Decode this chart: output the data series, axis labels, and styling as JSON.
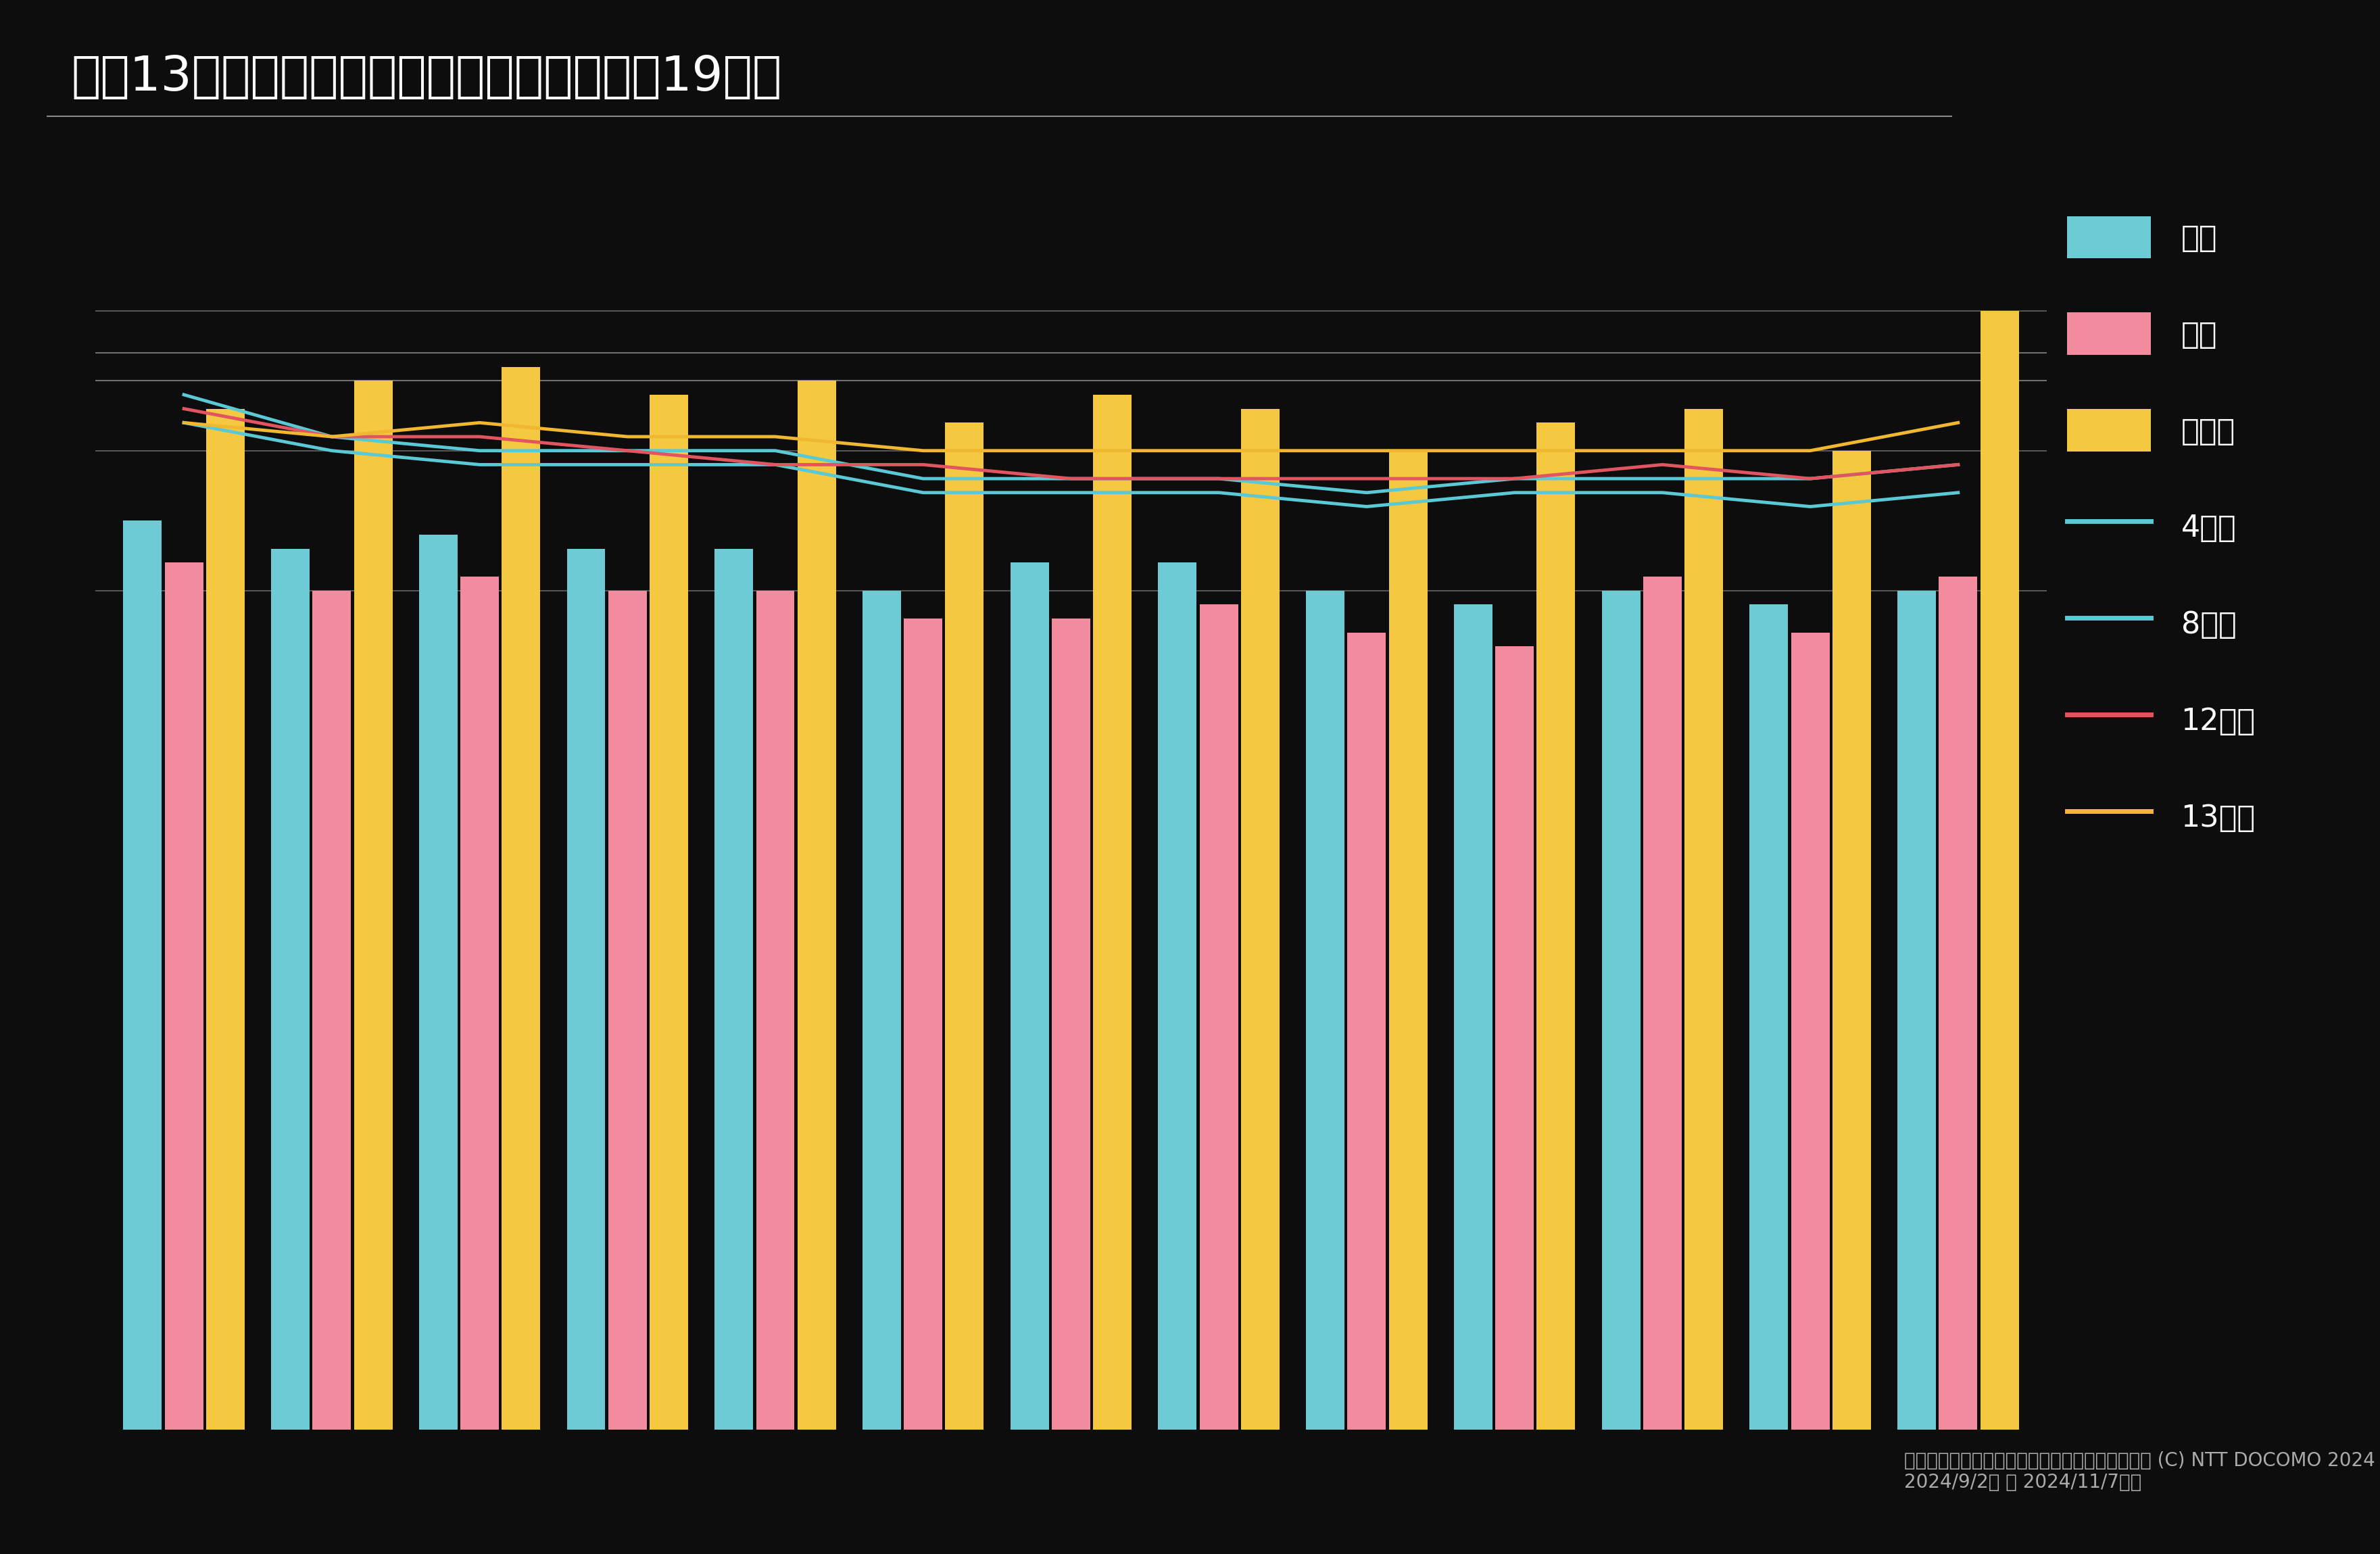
{
  "title": "直近13週の人口推移　ビジネス街　平日－19時台",
  "background_color": "#0d0d0d",
  "text_color": "#ffffff",
  "n_weeks": 13,
  "bar_colors": [
    "#6dcbd6",
    "#f28b9e",
    "#f5c842"
  ],
  "line_colors": [
    "#5bc8d5",
    "#e05560",
    "#f0b830"
  ],
  "bar_width": 0.28,
  "bar_series": [
    [
      65,
      63,
      64,
      63,
      63,
      60,
      62,
      62,
      60,
      59,
      60,
      59,
      60
    ],
    [
      62,
      60,
      61,
      60,
      60,
      58,
      58,
      59,
      57,
      56,
      61,
      57,
      61
    ],
    [
      73,
      75,
      76,
      74,
      75,
      72,
      74,
      73,
      70,
      72,
      73,
      70,
      80
    ]
  ],
  "line_series": [
    [
      74,
      71,
      70,
      70,
      70,
      68,
      68,
      68,
      67,
      68,
      68,
      68,
      69
    ],
    [
      73,
      71,
      71,
      70,
      69,
      69,
      68,
      68,
      68,
      68,
      69,
      68,
      69
    ]
  ],
  "ylim_bar": [
    0,
    90
  ],
  "ylim_display": [
    0,
    90
  ],
  "hlines": [
    60,
    70,
    80
  ],
  "top_hlines": [
    75,
    77
  ],
  "footnote": "データ：モバイル空間統計（推計人口）時間帯別 (C) NTT DOCOMO 2024\n2024/9/2月 ～ 2024/11/7現在",
  "legend_labels_bar": [
    "今週",
    "先週",
    "先々週"
  ],
  "legend_labels_line": [
    "4週前",
    "8週前",
    "12週前",
    "13週前"
  ],
  "legend_bar_colors": [
    "#6dcbd6",
    "#f28b9e",
    "#f5c842"
  ],
  "legend_line_colors": [
    "#5bc8d5",
    "#e05560"
  ],
  "all_line_colors": [
    "#5bc8d5",
    "#5bc8d5",
    "#e05560",
    "#f0b830"
  ],
  "all_line_series": [
    [
      74,
      71,
      70,
      70,
      70,
      68,
      68,
      68,
      67,
      68,
      68,
      68,
      69
    ],
    [
      72,
      70,
      69,
      69,
      69,
      67,
      67,
      67,
      66,
      67,
      67,
      66,
      67
    ],
    [
      73,
      71,
      71,
      70,
      69,
      69,
      68,
      68,
      68,
      68,
      69,
      68,
      69
    ],
    [
      72,
      71,
      72,
      71,
      71,
      70,
      70,
      70,
      70,
      70,
      70,
      70,
      72
    ]
  ]
}
